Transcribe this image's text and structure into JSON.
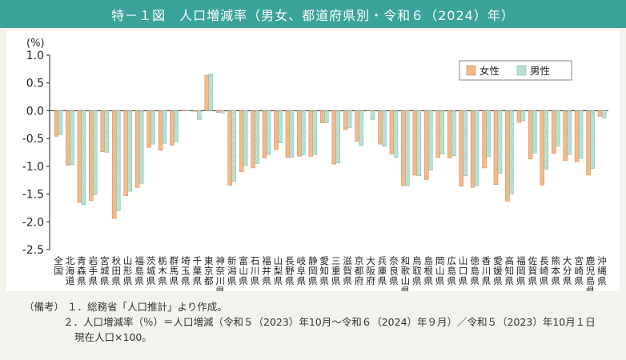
{
  "title": "特－１図　人口増減率（男女、都道府県別・令和６（2024）年）",
  "chart_data": {
    "type": "bar",
    "ylabel": "(%)",
    "ylim": [
      -2.5,
      1.0
    ],
    "yticks": [
      "1.0",
      "0.5",
      "0.0",
      "-0.5",
      "-1.0",
      "-1.5",
      "-2.0",
      "-2.5"
    ],
    "grid": false,
    "legend_position": "top-right",
    "categories": [
      "全国",
      "北海道",
      "青森県",
      "岩手県",
      "宮城県",
      "秋田県",
      "山形県",
      "福島県",
      "茨城県",
      "栃木県",
      "群馬県",
      "埼玉県",
      "千葉県",
      "東京都",
      "神奈川県",
      "新潟県",
      "富山県",
      "石川県",
      "福井県",
      "山梨県",
      "長野県",
      "岐阜県",
      "静岡県",
      "愛知県",
      "三重県",
      "滋賀県",
      "京都府",
      "大阪府",
      "兵庫県",
      "奈良県",
      "和歌山県",
      "鳥取県",
      "島根県",
      "岡山県",
      "広島県",
      "山口県",
      "徳島県",
      "香川県",
      "愛媛県",
      "高知県",
      "福岡県",
      "佐賀県",
      "長崎県",
      "熊本県",
      "大分県",
      "宮崎県",
      "鹿児島県",
      "沖縄県"
    ],
    "series": [
      {
        "name": "女性",
        "color": "#f5b888",
        "values": [
          -0.46,
          -0.98,
          -1.65,
          -1.62,
          -0.74,
          -1.94,
          -1.53,
          -1.38,
          -0.66,
          -0.71,
          -0.62,
          0.01,
          0.0,
          0.64,
          -0.03,
          -1.34,
          -1.1,
          -1.03,
          -0.85,
          -0.7,
          -0.84,
          -0.82,
          -0.82,
          -0.22,
          -0.96,
          -0.34,
          -0.55,
          0.01,
          -0.6,
          -0.78,
          -1.35,
          -1.16,
          -1.24,
          -0.84,
          -0.85,
          -1.36,
          -1.38,
          -1.03,
          -1.33,
          -1.63,
          -0.21,
          -0.87,
          -1.34,
          -0.77,
          -0.9,
          -0.92,
          -1.16,
          -0.1
        ]
      },
      {
        "name": "男性",
        "color": "#b9e1d4",
        "values": [
          -0.43,
          -0.97,
          -1.69,
          -1.51,
          -0.75,
          -1.8,
          -1.45,
          -1.31,
          -0.6,
          -0.59,
          -0.56,
          0.01,
          -0.16,
          0.66,
          -0.04,
          -1.27,
          -0.99,
          -0.95,
          -0.79,
          -0.58,
          -0.84,
          -0.8,
          -0.79,
          -0.22,
          -0.94,
          -0.31,
          -0.63,
          -0.16,
          -0.64,
          -0.84,
          -1.35,
          -1.17,
          -1.07,
          -0.78,
          -0.81,
          -1.17,
          -1.35,
          -0.83,
          -1.13,
          -1.5,
          -0.18,
          -0.76,
          -1.06,
          -0.64,
          -0.79,
          -0.86,
          -1.04,
          -0.13
        ]
      }
    ]
  },
  "notes": {
    "label": "（備考）",
    "items": [
      "１．総務省「人口推計」より作成。",
      "２．人口増減率（％）＝人口増減（令和５（2023）年10月～令和６（2024）年９月）／令和５（2023）年10月１日"
    ],
    "continuation": "現在人口×100。"
  }
}
